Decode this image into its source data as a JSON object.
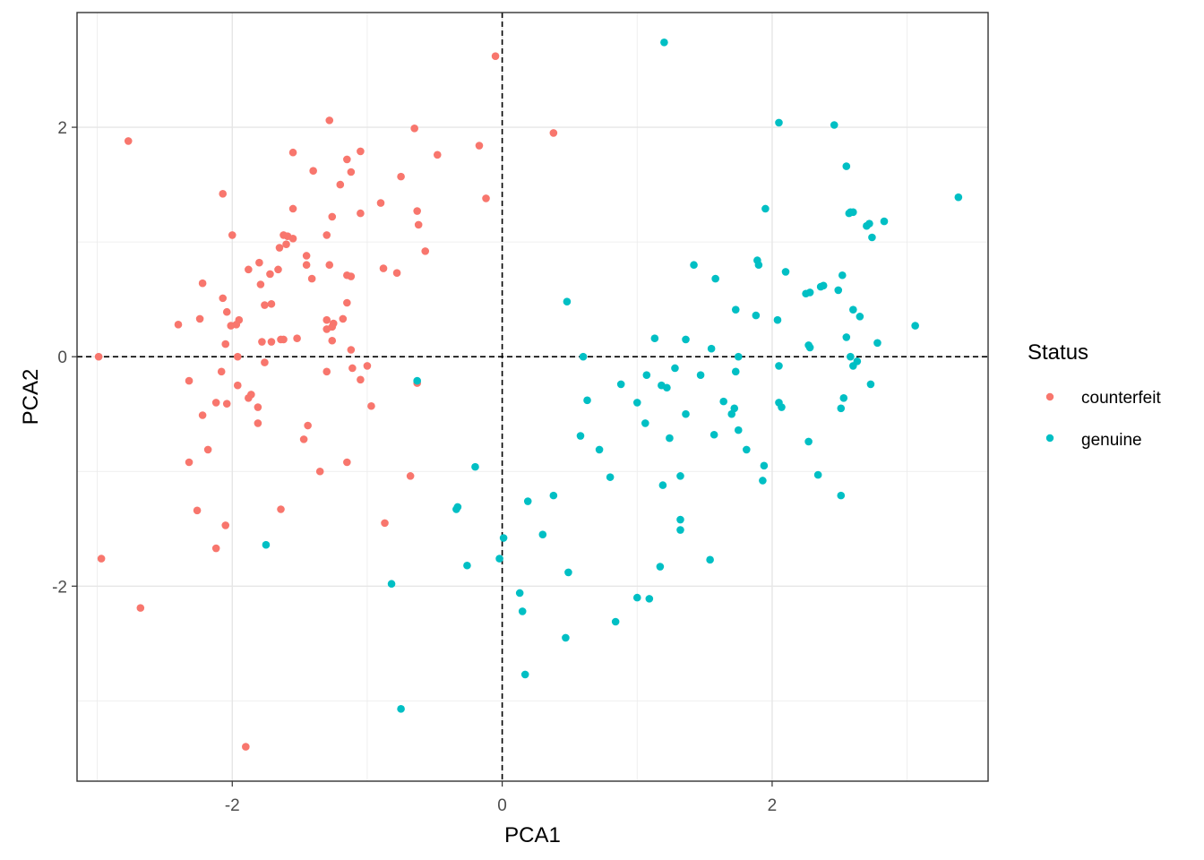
{
  "chart_data": {
    "type": "scatter",
    "title": "",
    "xlabel": "PCA1",
    "ylabel": "PCA2",
    "xlim": [
      -3.15,
      3.6
    ],
    "ylim": [
      -3.7,
      3.0
    ],
    "xticks": [
      -2,
      0,
      2
    ],
    "yticks": [
      -2,
      0,
      2
    ],
    "xtick_labels": [
      "-2",
      "0",
      "2"
    ],
    "ytick_labels": [
      "-2",
      "0",
      "2"
    ],
    "grid": true,
    "reference_lines": {
      "x": 0,
      "y": 0,
      "style": "dashed",
      "color": "#000000"
    },
    "legend": {
      "title": "Status",
      "placement": "right",
      "entries": [
        {
          "name": "counterfeit",
          "color": "#F8766D"
        },
        {
          "name": "genuine",
          "color": "#00BFC4"
        }
      ]
    },
    "series": [
      {
        "name": "counterfeit",
        "color": "#F8766D",
        "points": [
          [
            -0.05,
            2.62
          ],
          [
            0.38,
            1.95
          ],
          [
            -1.28,
            2.06
          ],
          [
            -2.77,
            1.88
          ],
          [
            -0.65,
            1.99
          ],
          [
            -1.55,
            1.78
          ],
          [
            -1.05,
            1.79
          ],
          [
            -1.15,
            1.72
          ],
          [
            -0.17,
            1.84
          ],
          [
            -1.12,
            1.61
          ],
          [
            -0.48,
            1.76
          ],
          [
            -1.4,
            1.62
          ],
          [
            -1.2,
            1.5
          ],
          [
            -0.75,
            1.57
          ],
          [
            -2.07,
            1.42
          ],
          [
            -0.12,
            1.38
          ],
          [
            -0.9,
            1.34
          ],
          [
            -1.55,
            1.29
          ],
          [
            -0.63,
            1.27
          ],
          [
            -1.05,
            1.25
          ],
          [
            -1.26,
            1.22
          ],
          [
            -0.62,
            1.15
          ],
          [
            -1.62,
            1.06
          ],
          [
            -1.59,
            1.05
          ],
          [
            -1.55,
            1.03
          ],
          [
            -1.3,
            1.06
          ],
          [
            -2.0,
            1.06
          ],
          [
            -1.6,
            0.98
          ],
          [
            -1.65,
            0.95
          ],
          [
            -0.57,
            0.92
          ],
          [
            -1.45,
            0.88
          ],
          [
            -1.8,
            0.82
          ],
          [
            -1.45,
            0.8
          ],
          [
            -1.28,
            0.8
          ],
          [
            -0.88,
            0.77
          ],
          [
            -1.88,
            0.76
          ],
          [
            -1.66,
            0.76
          ],
          [
            -0.78,
            0.73
          ],
          [
            -1.72,
            0.72
          ],
          [
            -1.15,
            0.71
          ],
          [
            -1.12,
            0.7
          ],
          [
            -1.41,
            0.68
          ],
          [
            -2.22,
            0.64
          ],
          [
            -1.79,
            0.63
          ],
          [
            -2.07,
            0.51
          ],
          [
            -1.15,
            0.47
          ],
          [
            -1.71,
            0.46
          ],
          [
            -1.76,
            0.45
          ],
          [
            -2.04,
            0.39
          ],
          [
            -1.95,
            0.32
          ],
          [
            -1.3,
            0.32
          ],
          [
            -1.18,
            0.33
          ],
          [
            -2.24,
            0.33
          ],
          [
            -1.25,
            0.29
          ],
          [
            -2.4,
            0.28
          ],
          [
            -1.97,
            0.28
          ],
          [
            -2.01,
            0.27
          ],
          [
            -1.26,
            0.26
          ],
          [
            -1.3,
            0.24
          ],
          [
            -1.52,
            0.16
          ],
          [
            -1.62,
            0.15
          ],
          [
            -1.64,
            0.15
          ],
          [
            -1.71,
            0.13
          ],
          [
            -1.78,
            0.13
          ],
          [
            -1.26,
            0.14
          ],
          [
            -2.05,
            0.11
          ],
          [
            -1.12,
            0.06
          ],
          [
            -1.96,
            0.0
          ],
          [
            -2.99,
            0.0
          ],
          [
            -1.76,
            -0.05
          ],
          [
            -1.0,
            -0.08
          ],
          [
            -1.11,
            -0.1
          ],
          [
            -1.3,
            -0.13
          ],
          [
            -2.08,
            -0.13
          ],
          [
            -1.05,
            -0.2
          ],
          [
            -0.63,
            -0.23
          ],
          [
            -2.32,
            -0.21
          ],
          [
            -1.96,
            -0.25
          ],
          [
            -1.86,
            -0.33
          ],
          [
            -1.88,
            -0.36
          ],
          [
            -2.12,
            -0.4
          ],
          [
            -2.04,
            -0.41
          ],
          [
            -1.81,
            -0.44
          ],
          [
            -0.97,
            -0.43
          ],
          [
            -2.22,
            -0.51
          ],
          [
            -1.81,
            -0.58
          ],
          [
            -1.44,
            -0.6
          ],
          [
            -1.47,
            -0.72
          ],
          [
            -2.18,
            -0.81
          ],
          [
            -1.15,
            -0.92
          ],
          [
            -2.32,
            -0.92
          ],
          [
            -1.35,
            -1.0
          ],
          [
            -0.68,
            -1.04
          ],
          [
            -2.26,
            -1.34
          ],
          [
            -1.64,
            -1.33
          ],
          [
            -0.87,
            -1.45
          ],
          [
            -2.05,
            -1.47
          ],
          [
            -2.12,
            -1.67
          ],
          [
            -2.97,
            -1.76
          ],
          [
            -2.68,
            -2.19
          ],
          [
            -1.9,
            -3.4
          ]
        ]
      },
      {
        "name": "genuine",
        "color": "#00BFC4",
        "points": [
          [
            1.2,
            2.74
          ],
          [
            2.05,
            2.04
          ],
          [
            2.46,
            2.02
          ],
          [
            2.55,
            1.66
          ],
          [
            3.38,
            1.39
          ],
          [
            1.95,
            1.29
          ],
          [
            2.58,
            1.26
          ],
          [
            2.6,
            1.26
          ],
          [
            2.57,
            1.25
          ],
          [
            2.83,
            1.18
          ],
          [
            2.72,
            1.16
          ],
          [
            2.7,
            1.14
          ],
          [
            2.74,
            1.04
          ],
          [
            1.89,
            0.84
          ],
          [
            1.42,
            0.8
          ],
          [
            1.9,
            0.8
          ],
          [
            2.1,
            0.74
          ],
          [
            2.52,
            0.71
          ],
          [
            1.58,
            0.68
          ],
          [
            2.38,
            0.62
          ],
          [
            2.36,
            0.61
          ],
          [
            2.49,
            0.58
          ],
          [
            2.28,
            0.56
          ],
          [
            2.25,
            0.55
          ],
          [
            0.48,
            0.48
          ],
          [
            1.73,
            0.41
          ],
          [
            2.6,
            0.41
          ],
          [
            1.88,
            0.36
          ],
          [
            2.04,
            0.32
          ],
          [
            2.65,
            0.35
          ],
          [
            3.06,
            0.27
          ],
          [
            1.13,
            0.16
          ],
          [
            1.36,
            0.15
          ],
          [
            2.55,
            0.17
          ],
          [
            2.78,
            0.12
          ],
          [
            2.27,
            0.1
          ],
          [
            2.28,
            0.08
          ],
          [
            1.55,
            0.07
          ],
          [
            1.75,
            0.0
          ],
          [
            0.6,
            0.0
          ],
          [
            2.58,
            0.0
          ],
          [
            2.63,
            -0.04
          ],
          [
            2.6,
            -0.08
          ],
          [
            1.28,
            -0.1
          ],
          [
            2.05,
            -0.08
          ],
          [
            1.73,
            -0.13
          ],
          [
            1.07,
            -0.16
          ],
          [
            1.47,
            -0.16
          ],
          [
            2.73,
            -0.24
          ],
          [
            0.88,
            -0.24
          ],
          [
            1.18,
            -0.25
          ],
          [
            1.22,
            -0.27
          ],
          [
            2.53,
            -0.36
          ],
          [
            0.63,
            -0.38
          ],
          [
            1.64,
            -0.39
          ],
          [
            1.0,
            -0.4
          ],
          [
            2.05,
            -0.4
          ],
          [
            2.07,
            -0.44
          ],
          [
            1.72,
            -0.45
          ],
          [
            2.51,
            -0.45
          ],
          [
            1.7,
            -0.5
          ],
          [
            1.36,
            -0.5
          ],
          [
            1.06,
            -0.58
          ],
          [
            1.75,
            -0.64
          ],
          [
            0.58,
            -0.69
          ],
          [
            1.57,
            -0.68
          ],
          [
            1.24,
            -0.71
          ],
          [
            2.27,
            -0.74
          ],
          [
            1.81,
            -0.81
          ],
          [
            0.72,
            -0.81
          ],
          [
            1.94,
            -0.95
          ],
          [
            0.8,
            -1.05
          ],
          [
            2.34,
            -1.03
          ],
          [
            1.93,
            -1.08
          ],
          [
            1.32,
            -1.04
          ],
          [
            1.19,
            -1.12
          ],
          [
            0.38,
            -1.21
          ],
          [
            2.51,
            -1.21
          ],
          [
            0.19,
            -1.26
          ],
          [
            -0.33,
            -1.31
          ],
          [
            -0.34,
            -1.33
          ],
          [
            1.32,
            -1.42
          ],
          [
            1.32,
            -1.51
          ],
          [
            0.3,
            -1.55
          ],
          [
            0.01,
            -1.58
          ],
          [
            -0.02,
            -1.76
          ],
          [
            1.54,
            -1.77
          ],
          [
            -0.26,
            -1.82
          ],
          [
            1.17,
            -1.83
          ],
          [
            0.49,
            -1.88
          ],
          [
            -0.82,
            -1.98
          ],
          [
            0.13,
            -2.06
          ],
          [
            1.0,
            -2.1
          ],
          [
            1.09,
            -2.11
          ],
          [
            0.15,
            -2.22
          ],
          [
            0.84,
            -2.31
          ],
          [
            0.47,
            -2.45
          ],
          [
            0.17,
            -2.77
          ],
          [
            -0.75,
            -3.07
          ],
          [
            -1.75,
            -1.64
          ],
          [
            -0.63,
            -0.21
          ],
          [
            -0.2,
            -0.96
          ]
        ]
      }
    ]
  }
}
